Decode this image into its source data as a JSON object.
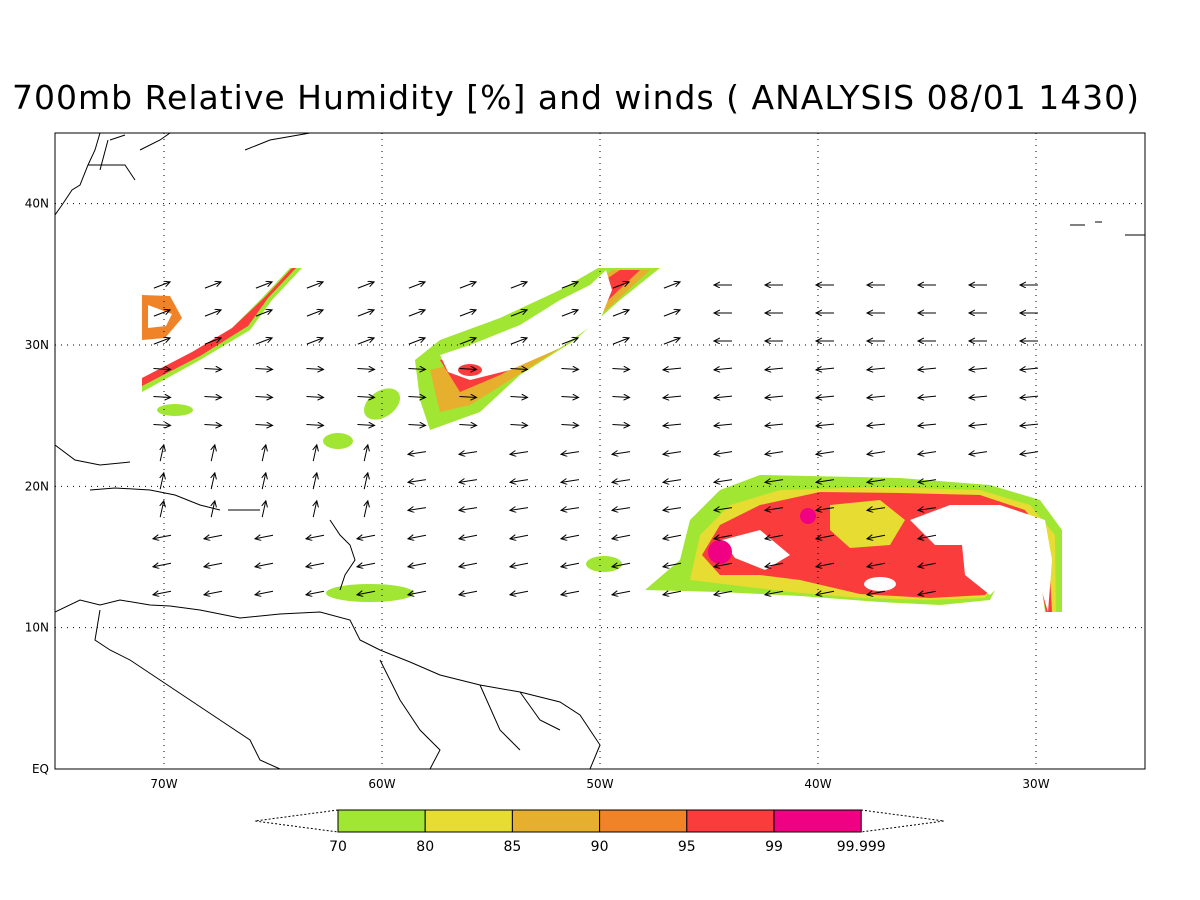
{
  "title": "700mb Relative Humidity [%] and winds ( ANALYSIS 08/01 1430)",
  "map": {
    "lon_range": [
      -75,
      -25
    ],
    "lat_range": [
      0,
      45
    ],
    "lon_ticks": [
      {
        "lon": -70,
        "label": "70W"
      },
      {
        "lon": -60,
        "label": "60W"
      },
      {
        "lon": -50,
        "label": "50W"
      },
      {
        "lon": -40,
        "label": "40W"
      },
      {
        "lon": -30,
        "label": "30W"
      }
    ],
    "lat_ticks": [
      {
        "lat": 0,
        "label": "EQ"
      },
      {
        "lat": 10,
        "label": "10N"
      },
      {
        "lat": 20,
        "label": "20N"
      },
      {
        "lat": 30,
        "label": "30N"
      },
      {
        "lat": 40,
        "label": "40N"
      }
    ],
    "grid": "dotted"
  },
  "legend": {
    "boxes": [
      {
        "color": "#a0e632"
      },
      {
        "color": "#e6dc32"
      },
      {
        "color": "#e6af2d"
      },
      {
        "color": "#f08228"
      },
      {
        "color": "#fa3c3c"
      },
      {
        "color": "#f00082"
      }
    ],
    "labels": [
      "70",
      "80",
      "85",
      "90",
      "95",
      "99",
      "99.999"
    ]
  }
}
